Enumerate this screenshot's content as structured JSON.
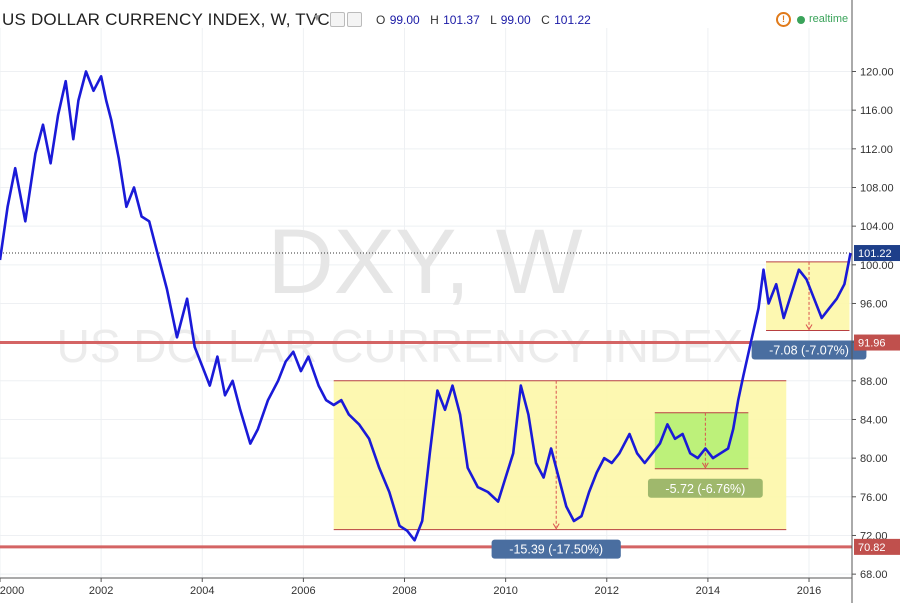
{
  "header": {
    "title": "US DOLLAR CURRENCY INDEX, W, TVC",
    "open_label": "O",
    "open": "99.00",
    "high_label": "H",
    "high": "101.37",
    "low_label": "L",
    "low": "99.00",
    "close_label": "C",
    "close": "101.22",
    "realtime_label": "realtime",
    "alert_icon": "alert-circle-icon",
    "live_icon": "live-dot-icon",
    "colors": {
      "ohlc_text": "#1a1aa6",
      "realtime": "#3aa35a",
      "alert": "#e07a1a"
    }
  },
  "chart_data": {
    "type": "line",
    "title": "US DOLLAR CURRENCY INDEX, W, TVC",
    "watermark_symbol": "DXY, W",
    "watermark_name": "US DOLLAR CURRENCY INDEX",
    "xlabel": "",
    "ylabel": "",
    "xlim": [
      2000.0,
      2016.85
    ],
    "ylim": [
      67.6,
      124.5
    ],
    "x_ticks": [
      "2000",
      "2002",
      "2004",
      "2006",
      "2008",
      "2010",
      "2012",
      "2014",
      "2016"
    ],
    "y_ticks": [
      "68.00",
      "72.00",
      "76.00",
      "80.00",
      "84.00",
      "88.00",
      "92.00",
      "96.00",
      "100.00",
      "104.00",
      "108.00",
      "112.00",
      "116.00",
      "120.00"
    ],
    "line_color": "#1a1ad8",
    "series": [
      {
        "x": [
          2000.0,
          2000.15,
          2000.3,
          2000.5,
          2000.7,
          2000.85,
          2001.0,
          2001.15,
          2001.3,
          2001.45,
          2001.55,
          2001.7,
          2001.85,
          2002.0,
          2002.1,
          2002.2,
          2002.35,
          2002.5,
          2002.65,
          2002.8,
          2002.95,
          2003.1,
          2003.3,
          2003.5,
          2003.7,
          2003.85,
          2004.0,
          2004.15,
          2004.3,
          2004.45,
          2004.6,
          2004.75,
          2004.95,
          2005.1,
          2005.3,
          2005.5,
          2005.65,
          2005.8,
          2005.95,
          2006.1,
          2006.3,
          2006.45,
          2006.6,
          2006.75,
          2006.9,
          2007.1,
          2007.3,
          2007.5,
          2007.7,
          2007.9,
          2008.05,
          2008.2,
          2008.35,
          2008.5,
          2008.65,
          2008.8,
          2008.95,
          2009.1,
          2009.25,
          2009.45,
          2009.65,
          2009.85,
          2010.0,
          2010.15,
          2010.3,
          2010.45,
          2010.6,
          2010.75,
          2010.9,
          2011.05,
          2011.2,
          2011.35,
          2011.5,
          2011.65,
          2011.8,
          2011.95,
          2012.1,
          2012.25,
          2012.45,
          2012.6,
          2012.75,
          2012.9,
          2013.05,
          2013.2,
          2013.35,
          2013.5,
          2013.65,
          2013.8,
          2013.95,
          2014.1,
          2014.25,
          2014.4,
          2014.5,
          2014.6,
          2014.7,
          2014.85,
          2015.0,
          2015.1,
          2015.2,
          2015.35,
          2015.5,
          2015.65,
          2015.8,
          2015.95,
          2016.1,
          2016.25,
          2016.4,
          2016.55,
          2016.7,
          2016.82
        ],
        "values": [
          100.5,
          106.0,
          110.0,
          104.5,
          111.5,
          114.5,
          110.5,
          115.5,
          119.0,
          113.0,
          117.0,
          120.0,
          118.0,
          119.5,
          117.0,
          115.0,
          111.0,
          106.0,
          108.0,
          105.0,
          104.5,
          101.5,
          97.5,
          92.5,
          96.5,
          91.5,
          89.5,
          87.5,
          90.5,
          86.5,
          88.0,
          85.0,
          81.5,
          83.0,
          86.0,
          88.0,
          90.0,
          91.0,
          89.0,
          90.5,
          87.5,
          86.0,
          85.5,
          86.0,
          84.5,
          83.5,
          82.0,
          79.0,
          76.5,
          73.0,
          72.5,
          71.5,
          73.5,
          80.5,
          87.0,
          85.0,
          87.5,
          84.5,
          79.0,
          77.0,
          76.5,
          75.5,
          78.0,
          80.5,
          87.5,
          84.5,
          79.5,
          78.0,
          81.0,
          78.0,
          75.0,
          73.5,
          74.0,
          76.5,
          78.5,
          80.0,
          79.5,
          80.5,
          82.5,
          80.5,
          79.5,
          80.5,
          81.5,
          83.5,
          82.0,
          82.5,
          80.5,
          80.0,
          81.0,
          80.0,
          80.5,
          81.0,
          83.0,
          86.0,
          88.5,
          92.0,
          95.5,
          99.5,
          96.0,
          98.0,
          94.5,
          97.0,
          99.5,
          98.5,
          96.5,
          94.5,
          95.5,
          96.5,
          98.0,
          101.22
        ]
      }
    ],
    "price_tags": [
      {
        "value": 101.22,
        "label": "101.22",
        "color": "#1e3f8a"
      },
      {
        "value": 91.96,
        "label": "91.96",
        "color": "#c0504d"
      },
      {
        "value": 70.82,
        "label": "70.82",
        "color": "#c0504d"
      }
    ],
    "horizontal_lines": [
      {
        "value": 91.96,
        "color": "#d46464"
      },
      {
        "value": 70.82,
        "color": "#d46464"
      },
      {
        "value": 101.22,
        "color": "#333333",
        "style": "dotted"
      }
    ],
    "ranges": [
      {
        "x0": 2006.6,
        "x1": 2015.55,
        "top": 88.0,
        "bottom": 72.6,
        "fill": "#fdf7a8",
        "measure_x": 2011.0,
        "label": "-15.39 (-17.50%)",
        "label_color": "#4a6ea0"
      },
      {
        "x0": 2015.15,
        "x1": 2016.8,
        "top": 100.3,
        "bottom": 93.2,
        "fill": "#fdf7a8",
        "measure_x": 2016.0,
        "label": "-7.08 (-7.07%)",
        "label_color": "#4a6ea0"
      },
      {
        "x0": 2012.95,
        "x1": 2014.8,
        "top": 84.7,
        "bottom": 78.9,
        "fill": "#b6f074",
        "measure_x": 2013.95,
        "label": "-5.72 (-6.76%)",
        "label_color": "#9fb86c"
      }
    ]
  }
}
